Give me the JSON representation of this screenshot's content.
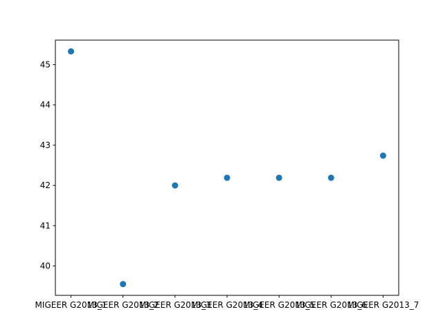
{
  "chart_data": {
    "type": "scatter",
    "title": "",
    "xlabel": "",
    "ylabel": "",
    "categories": [
      "MIGEER G2013_1",
      "MIGEER G2013_2",
      "MIGEER G2013_3",
      "MIGEER G2013_4",
      "MIGEER G2013_5",
      "MIGEER G2013_6",
      "MIGEER G2013_7"
    ],
    "values": [
      45.33,
      39.55,
      42.0,
      42.19,
      42.19,
      42.19,
      42.74
    ],
    "ylim": [
      39.27,
      45.61
    ],
    "yticks": [
      40,
      41,
      42,
      43,
      44,
      45
    ],
    "grid": false,
    "marker_color": "#1f77b4"
  }
}
